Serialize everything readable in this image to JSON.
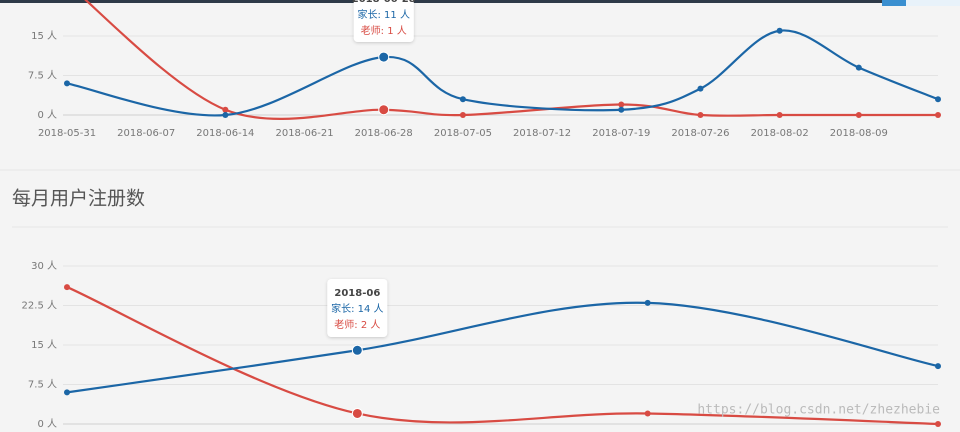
{
  "chart_data": [
    {
      "type": "line",
      "x": [
        "2018-05-31",
        "2018-06-14",
        "2018-06-28",
        "2018-07-05",
        "2018-07-19",
        "2018-07-26",
        "2018-08-02",
        "2018-08-09",
        "2018-08-16"
      ],
      "xlim": [
        "2018-05-31",
        "2018-08-16"
      ],
      "xticks": [
        "2018-05-31",
        "2018-06-07",
        "2018-06-14",
        "2018-06-21",
        "2018-06-28",
        "2018-07-05",
        "2018-07-12",
        "2018-07-19",
        "2018-07-26",
        "2018-08-02",
        "2018-08-09"
      ],
      "ylim": [
        0,
        22.5
      ],
      "yticks": [
        {
          "value": 0,
          "label": "0 人"
        },
        {
          "value": 7.5,
          "label": "7.5 人"
        },
        {
          "value": 15,
          "label": "15 人"
        }
      ],
      "grid": true,
      "series": [
        {
          "name": "家长",
          "color": "#1b66a6",
          "values": [
            6,
            0,
            11,
            3,
            1,
            5,
            16,
            9,
            3
          ]
        },
        {
          "name": "老师",
          "color": "#d84b43",
          "values": [
            25,
            1,
            1,
            0,
            2,
            0,
            0,
            0,
            0
          ]
        }
      ],
      "tooltip": {
        "x": "2018-06-28",
        "lines": [
          "家长: 11 人",
          "老师: 1 人"
        ]
      }
    },
    {
      "type": "line",
      "title": "每月用户注册数",
      "categories": [
        null,
        "2018-06",
        null,
        null
      ],
      "ylim": [
        0,
        30
      ],
      "yticks": [
        {
          "value": 0,
          "label": "0 人"
        },
        {
          "value": 7.5,
          "label": "7.5 人"
        },
        {
          "value": 15,
          "label": "15 人"
        },
        {
          "value": 22.5,
          "label": "22.5 人"
        },
        {
          "value": 30,
          "label": "30 人"
        }
      ],
      "grid": true,
      "series": [
        {
          "name": "家长",
          "color": "#1b66a6",
          "values": [
            6,
            14,
            23,
            11
          ]
        },
        {
          "name": "老师",
          "color": "#d84b43",
          "values": [
            26,
            2,
            2,
            0
          ]
        }
      ],
      "tooltip": {
        "lines": [
          "家长: 14 人",
          "老师: 2 人"
        ]
      }
    }
  ],
  "watermark": "https://blog.csdn.net/zhezhebie"
}
